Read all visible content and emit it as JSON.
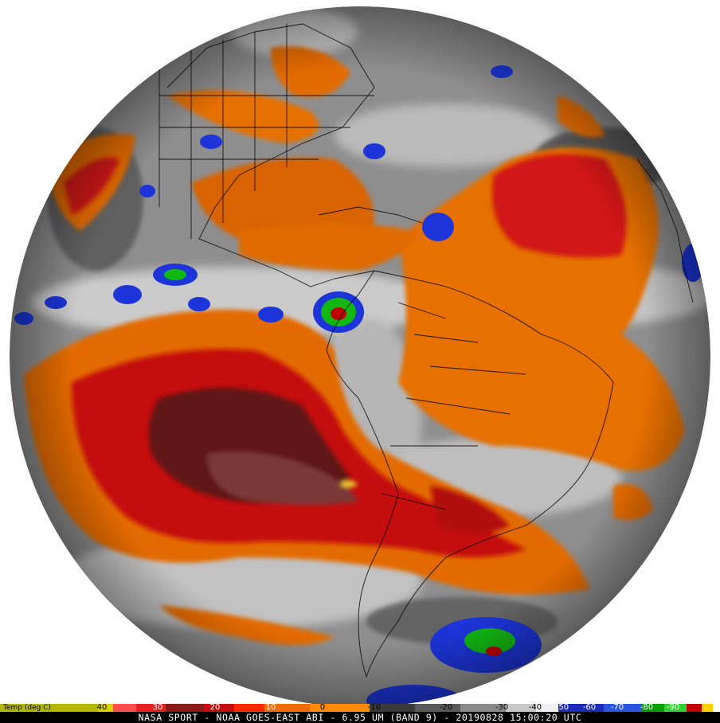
{
  "colorbar": {
    "title": "Temp (deg C)",
    "ticks": [
      "40",
      "30",
      "20",
      "10",
      "0",
      "-10",
      "-20",
      "-30",
      "-40",
      "-50",
      "-60",
      "-70",
      "-80",
      "-90"
    ],
    "stops": [
      "#b5b800",
      "#d8d000",
      "#ff4c4c",
      "#e82020",
      "#8a1a1a",
      "#c41010",
      "#ff2a00",
      "#f06b00",
      "#ff8c00",
      "#3a3a3a",
      "#5a5a5a",
      "#8a8a8a",
      "#c8c8c8",
      "#f0f0f0",
      "#1a2cb8",
      "#2a55e0",
      "#00a000",
      "#30d030",
      "#c00000",
      "#ffd000",
      "#ffffff"
    ]
  },
  "caption": "NASA SPORT - NOAA GOES-EAST ABI - 6.95 UM (BAND 9) - 20190828 15:00:20 UTC",
  "colors": {
    "warm_orange": "#e36b00",
    "dry_red": "#c40f0f",
    "very_dry": "#5a1414",
    "moist_gray": "#9a9a9a",
    "cold_cloud_blue": "#1c34d8",
    "cold_cloud_green": "#12b812"
  }
}
